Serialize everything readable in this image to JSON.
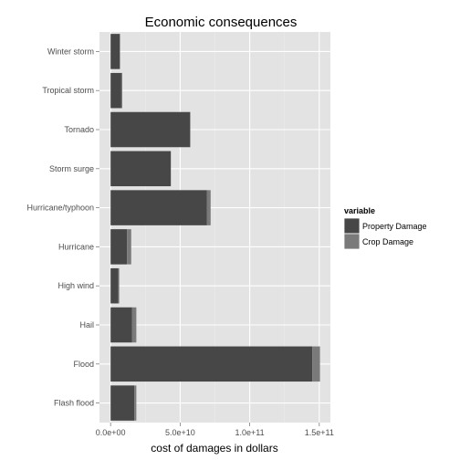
{
  "chart_data": {
    "type": "bar",
    "orientation": "horizontal",
    "stacked": true,
    "title": "Economic consequences",
    "xlabel": "cost of damages in dollars",
    "ylabel": "",
    "xlim": [
      -8000000000,
      158000000000
    ],
    "x_ticks": [
      0,
      50000000000,
      100000000000,
      150000000000
    ],
    "x_tick_labels": [
      "0.0e+00",
      "5.0e+10",
      "1.0e+11",
      "1.5e+11"
    ],
    "categories": [
      "Flash flood",
      "Flood",
      "Hail",
      "High wind",
      "Hurricane",
      "Hurricane/typhoon",
      "Storm surge",
      "Tornado",
      "Tropical storm",
      "Winter storm"
    ],
    "series": [
      {
        "name": "Property Damage",
        "color": "#474747",
        "values": [
          17000000000,
          145000000000,
          15500000000,
          5500000000,
          11800000000,
          69300000000,
          43300000000,
          57000000000,
          7700000000,
          6700000000
        ]
      },
      {
        "name": "Crop Damage",
        "color": "#7a7a7a",
        "values": [
          1500000000,
          5500000000,
          3000000000,
          700000000,
          3000000000,
          2600000000,
          0,
          400000000,
          700000000,
          0
        ]
      }
    ],
    "grid": true,
    "panel_color": "#e3e3e3",
    "legend": {
      "title": "variable",
      "placement": "right",
      "items": [
        "Property Damage",
        "Crop Damage"
      ]
    }
  }
}
